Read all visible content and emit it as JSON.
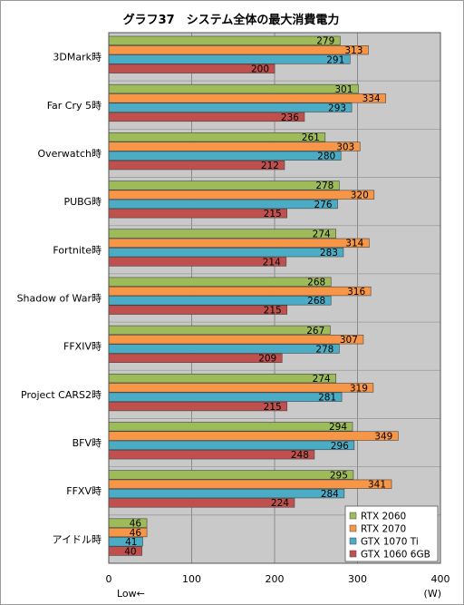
{
  "chart_data": {
    "type": "bar",
    "orientation": "horizontal",
    "title": "グラフ37　システム全体の最大消費電力",
    "categories": [
      "3DMark時",
      "Far Cry 5時",
      "Overwatch時",
      "PUBG時",
      "Fortnite時",
      "Shadow of War時",
      "FFXIV時",
      "Project CARS2時",
      "BFV時",
      "FFXV時",
      "アイドル時"
    ],
    "series": [
      {
        "name": "RTX 2060",
        "color": "#9dbb59",
        "values": [
          279,
          301,
          261,
          278,
          274,
          268,
          267,
          274,
          294,
          295,
          46
        ]
      },
      {
        "name": "RTX 2070",
        "color": "#f79646",
        "values": [
          313,
          334,
          303,
          320,
          314,
          316,
          307,
          319,
          349,
          341,
          46
        ]
      },
      {
        "name": "GTX 1070 Ti",
        "color": "#4bacc6",
        "values": [
          291,
          293,
          280,
          276,
          283,
          268,
          278,
          281,
          296,
          284,
          41
        ]
      },
      {
        "name": "GTX 1060 6GB",
        "color": "#c0504d",
        "values": [
          200,
          236,
          212,
          215,
          214,
          215,
          209,
          215,
          248,
          224,
          40
        ]
      }
    ],
    "xlim": [
      0,
      400
    ],
    "xticks": [
      "0",
      "100",
      "200",
      "300",
      "400"
    ],
    "xlabel_left": "Low←",
    "xlabel_right": "(W)",
    "legend_position": "bottom-right",
    "grid": true
  }
}
